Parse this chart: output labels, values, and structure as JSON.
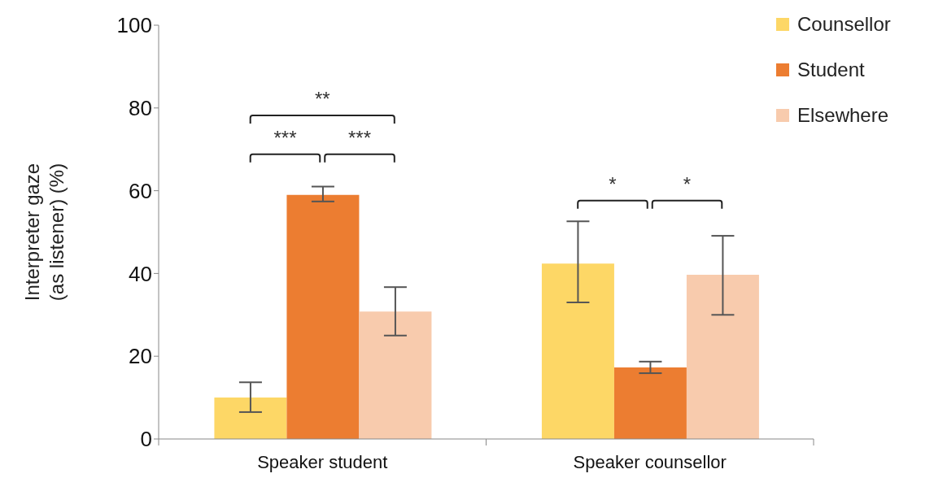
{
  "chart_data": {
    "type": "bar",
    "categories": [
      "Speaker student",
      "Speaker counsellor"
    ],
    "ylabel": "Interpreter gaze\n(as listener) (%)",
    "series": [
      {
        "name": "Counsellor",
        "color": "#fdd766",
        "values": [
          10,
          42.4
        ],
        "errors": [
          [
            6.5,
            13.7
          ],
          [
            33,
            52.6
          ]
        ]
      },
      {
        "name": "Student",
        "color": "#ec7d31",
        "values": [
          59,
          17.3
        ],
        "errors": [
          [
            57.4,
            61
          ],
          [
            15.9,
            18.7
          ]
        ]
      },
      {
        "name": "Elsewhere",
        "color": "#f8cbad",
        "values": [
          30.8,
          39.7
        ],
        "errors": [
          [
            25,
            36.7
          ],
          [
            30,
            49.1
          ]
        ]
      }
    ],
    "ylim": [
      0,
      100
    ],
    "yticks": [
      0,
      20,
      40,
      60,
      80,
      100
    ],
    "annotations": [
      "***",
      "***",
      "**",
      "*",
      "*"
    ],
    "legend": "top right",
    "grid": false
  }
}
